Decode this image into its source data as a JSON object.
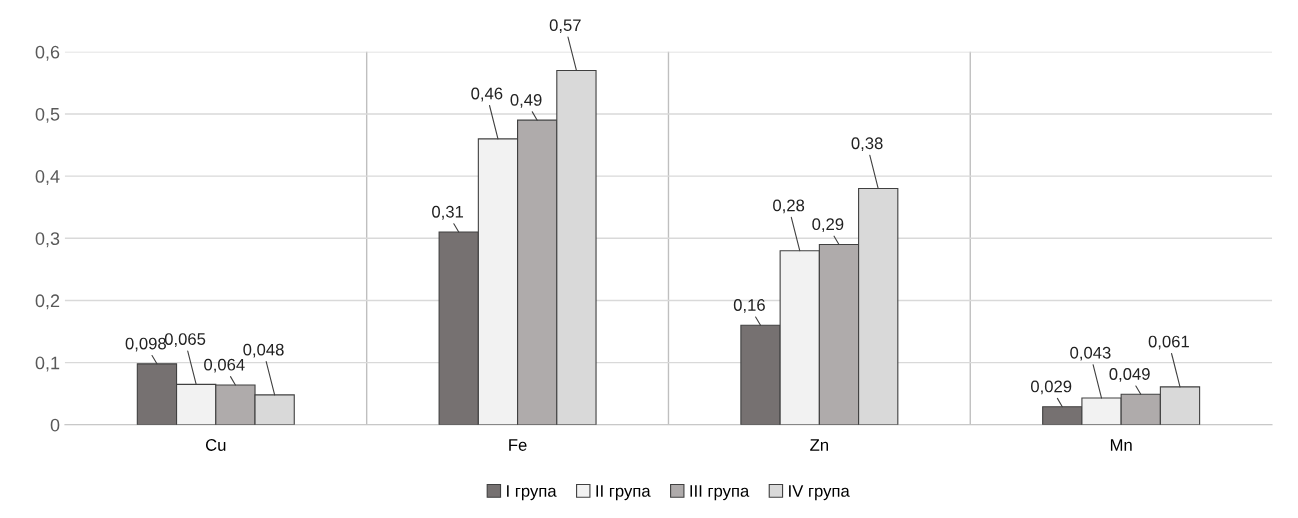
{
  "chart_data": {
    "type": "bar",
    "categories": [
      "Cu",
      "Fe",
      "Zn",
      "Mn"
    ],
    "series": [
      {
        "name": "I група",
        "color": "#767171",
        "values": [
          0.098,
          0.31,
          0.16,
          0.029
        ],
        "value_labels": [
          "0,098",
          "0,31",
          "0,16",
          "0,029"
        ]
      },
      {
        "name": "II група",
        "color": "#f2f2f2",
        "values": [
          0.065,
          0.46,
          0.28,
          0.043
        ],
        "value_labels": [
          "0,065",
          "0,46",
          "0,28",
          "0,043"
        ]
      },
      {
        "name": "III група",
        "color": "#afabab",
        "values": [
          0.064,
          0.49,
          0.29,
          0.049
        ],
        "value_labels": [
          "0,064",
          "0,49",
          "0,29",
          "0,049"
        ]
      },
      {
        "name": "IV група",
        "color": "#d9d9d9",
        "values": [
          0.048,
          0.57,
          0.38,
          0.061
        ],
        "value_labels": [
          "0,048",
          "0,57",
          "0,38",
          "0,061"
        ]
      }
    ],
    "ylim": [
      0,
      0.6
    ],
    "yticks": [
      0,
      {
        "value": 0.1,
        "label": "0,1"
      },
      {
        "value": 0.2,
        "label": "0,2"
      },
      {
        "value": 0.3,
        "label": "0,3"
      },
      {
        "value": 0.4,
        "label": "0,4"
      },
      {
        "value": 0.5,
        "label": "0,5"
      },
      {
        "value": 0.6,
        "label": "0,6"
      }
    ],
    "grid": true,
    "legend": "bottom"
  }
}
